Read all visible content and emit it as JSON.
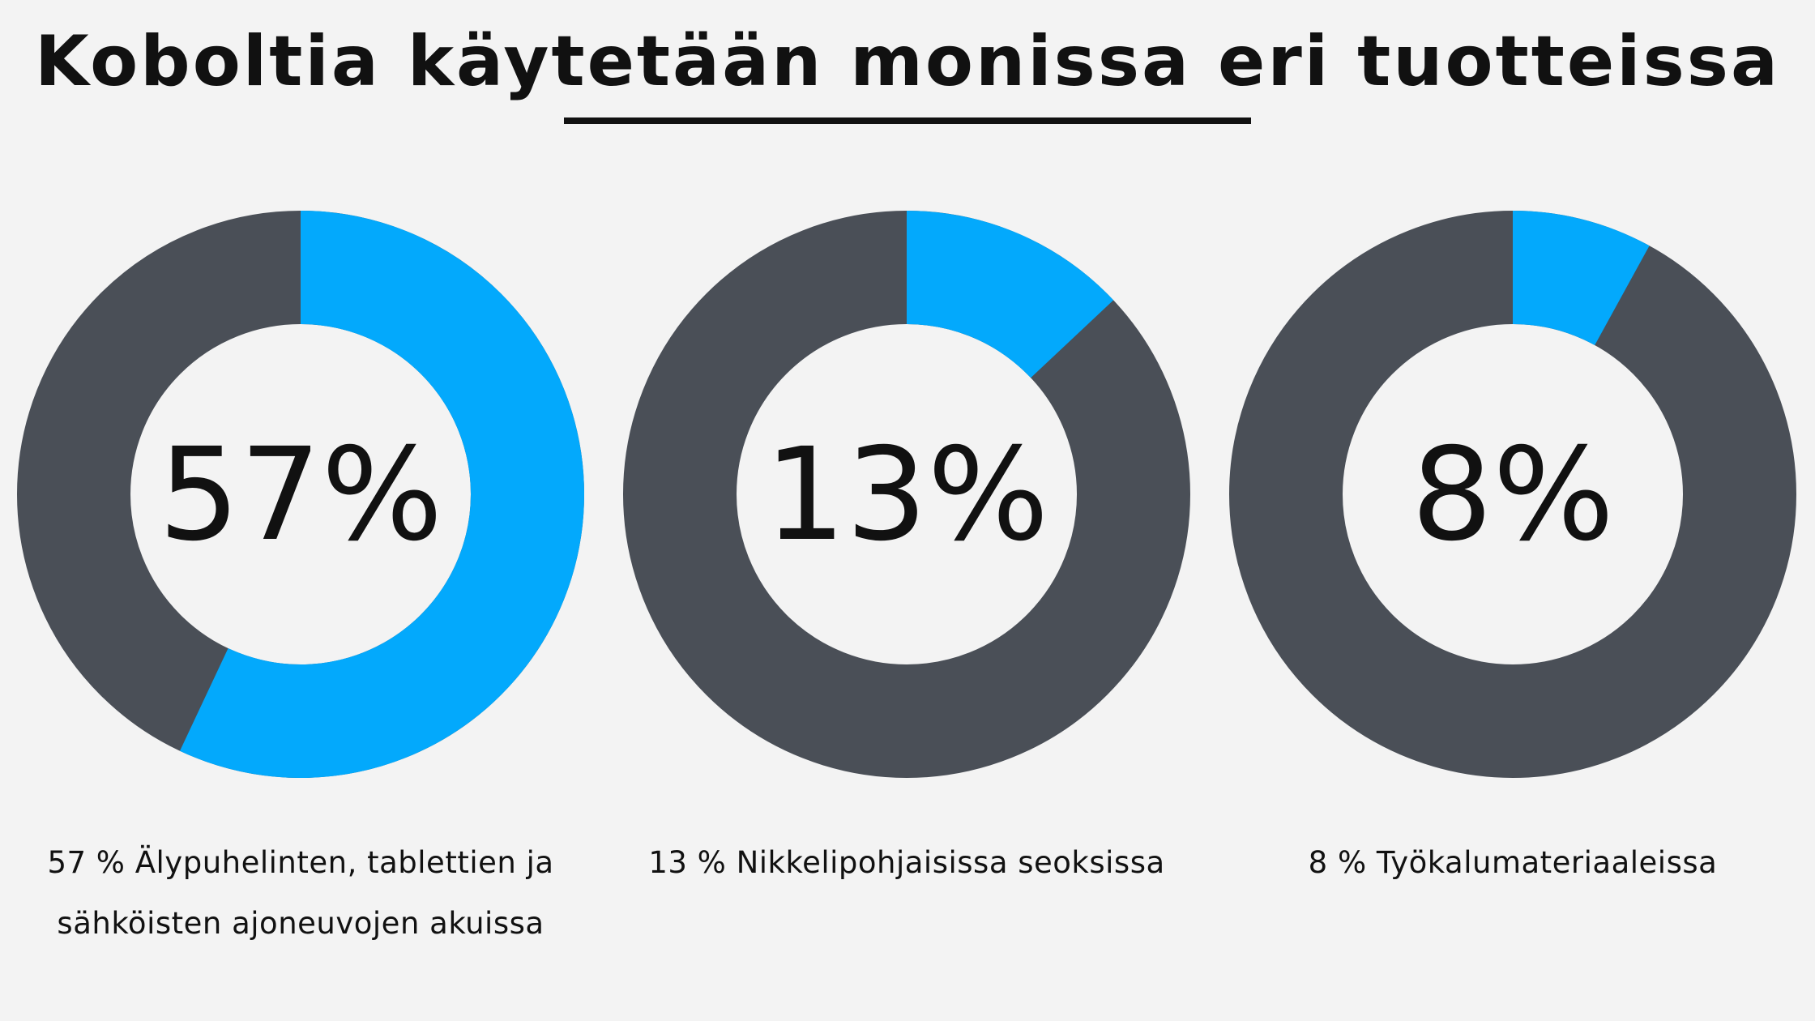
{
  "title": "Koboltia käytetään monissa eri tuotteissa",
  "chart_data": [
    {
      "type": "donut",
      "values": [
        57
      ],
      "value_labels": [
        "57%"
      ],
      "color": "#03a9fc",
      "track_color": "#4a4f57",
      "caption": "57 % Älypuhelinten, tablettien ja sähköisten ajoneuvojen akuissa"
    },
    {
      "type": "donut",
      "values": [
        13
      ],
      "value_labels": [
        "13%"
      ],
      "color": "#03a9fc",
      "track_color": "#4a4f57",
      "caption": "13 % Nikkelipohjaisissa seoksissa"
    },
    {
      "type": "donut",
      "values": [
        8
      ],
      "value_labels": [
        "8%"
      ],
      "color": "#03a9fc",
      "track_color": "#4a4f57",
      "caption": "8 % Työkalumateriaaleissa"
    }
  ]
}
